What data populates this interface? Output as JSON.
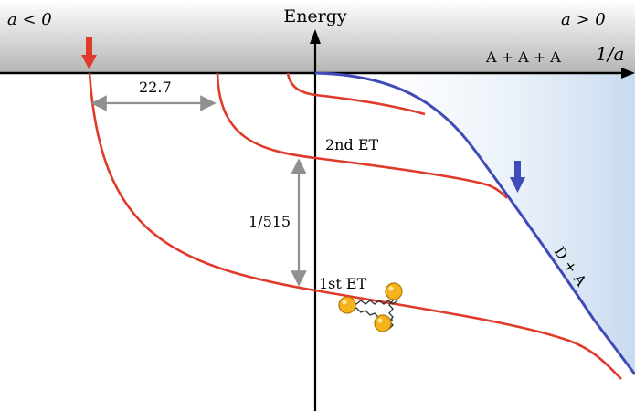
{
  "labels": {
    "energy_axis": "Energy",
    "a_negative": "a < 0",
    "a_positive": "a > 0",
    "inverse_a": "1/a",
    "threshold": "A + A + A",
    "dimer_branch": "D + A",
    "spacing_horizontal": "22.7",
    "spacing_vertical": "1/515",
    "second_state": "2nd ET",
    "first_state": "1st ET"
  },
  "colors": {
    "state_curves": "#e03a2a",
    "dimer_curve": "#3f4bb8",
    "dimer_shade": "#c8daf0",
    "threshold_band_light": "#ffffff",
    "threshold_band_dark": "#b5b5b5",
    "spacing_arrows": "#909090",
    "atom_fill": "#f5b21c",
    "atom_stroke": "#b07800",
    "axis": "#000000"
  },
  "icons": {
    "left_marker": "red-down-arrow-icon",
    "right_marker": "blue-down-arrow-icon",
    "molecule": "three-atom-spring-icon"
  }
}
